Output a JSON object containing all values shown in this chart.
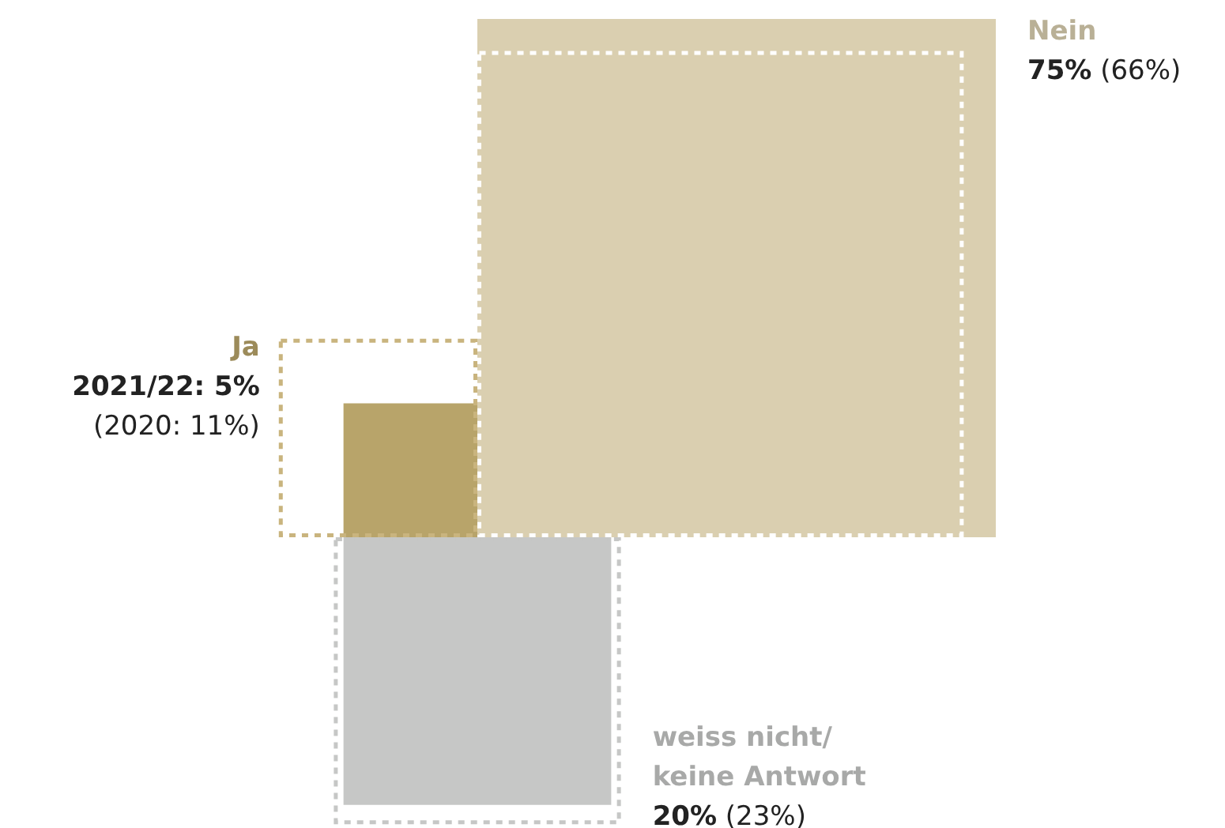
{
  "chart_data": {
    "type": "other",
    "categories": [
      "Ja",
      "Nein",
      "weiss nicht/ keine Antwort"
    ],
    "series": [
      {
        "colors": [
          "#b8a46a",
          "#dacfb0",
          "#c6c7c6"
        ],
        "values": [
          5,
          75,
          20
        ],
        "value_labels": [
          "2021/22: 5%",
          "75%",
          "20%"
        ]
      },
      {
        "colors": [
          "#c9b47e",
          "#ffffff",
          "#c6c7c6"
        ],
        "values": [
          11,
          66,
          23
        ],
        "value_labels": [
          "(2020: 11%)",
          "(66%)",
          "(23%)"
        ],
        "line_style": "dashed"
      }
    ]
  }
}
